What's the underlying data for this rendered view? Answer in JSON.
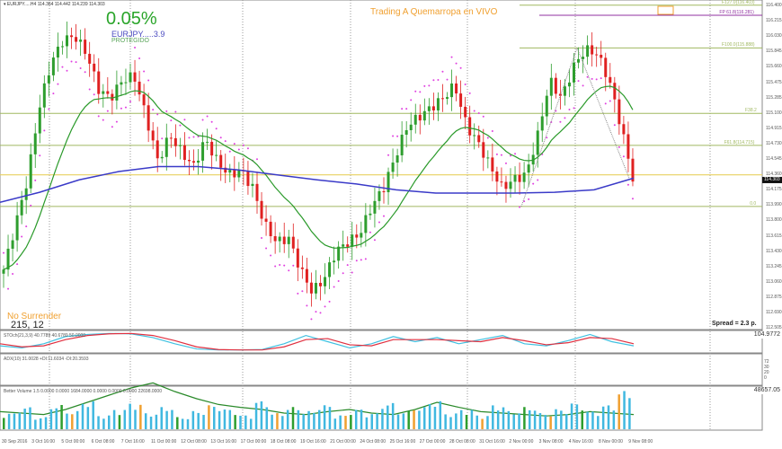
{
  "header": {
    "symbol_line": "▾ EURJPY.....H4  114.364 114.442 114.239 114.303"
  },
  "overlay": {
    "percent": "0.05%",
    "symbol_value": "EURJPY.....3.9",
    "status": "PROTEGIDO",
    "title": "Trading A Quemarropa en VIVO",
    "slogan": "No Surrender",
    "counter": "215, 12",
    "spread": "Spread = 2.3 p."
  },
  "panes": {
    "stoch_label": "STOch(21,3,9) 40.7789 40.6789 50.0000",
    "adx_label": "ADX(10) 31.0028 +DI:11.6034 -DI:20.3593",
    "volume_label": "Better Volume 1.5 0.0000 0.0000 1684.0000 0.0000 0.0000 0.0000 22698.0000",
    "volume_max": "48657.05",
    "stoch_max": "104.9772",
    "adx_levels": [
      "72",
      "30",
      "20",
      "0"
    ]
  },
  "colors": {
    "bull": "#2e9e2e",
    "bear": "#e02020",
    "ma_fast": "#2a9a2a",
    "ma_slow": "#3a3ac8",
    "psar": "#e040e0",
    "fib": "#a0b860",
    "pivot": "#9030a0",
    "current": "#e8d060",
    "stoch_main": "#40c0e0",
    "stoch_signal": "#e03040",
    "adx": "#2a8a2a",
    "volume": "#40b8e0"
  },
  "chart_data": {
    "type": "candlestick",
    "timeframe": "H4",
    "ylim": [
      112.505,
      116.46
    ],
    "y_ticks": [
      "116.400",
      "116.215",
      "116.030",
      "115.845",
      "115.660",
      "115.475",
      "115.285",
      "115.100",
      "114.915",
      "114.730",
      "114.545",
      "114.360",
      "114.175",
      "113.990",
      "113.800",
      "113.615",
      "113.430",
      "113.245",
      "113.060",
      "112.875",
      "112.690",
      "112.505"
    ],
    "current_price": "114.303",
    "x_ticks": [
      "30 Sep 2016",
      "3 Oct 16:00",
      "5 Oct 00:00",
      "6 Oct 08:00",
      "7 Oct 16:00",
      "11 Oct 00:00",
      "12 Oct 08:00",
      "13 Oct 16:00",
      "17 Oct 00:00",
      "18 Oct 08:00",
      "19 Oct 16:00",
      "21 Oct 00:00",
      "24 Oct 08:00",
      "25 Oct 16:00",
      "27 Oct 00:00",
      "28 Oct 08:00",
      "31 Oct 16:00",
      "2 Nov 00:00",
      "3 Nov 08:00",
      "4 Nov 16:00",
      "8 Nov 00:00",
      "9 Nov 08:00"
    ],
    "close_path": [
      113.22,
      113.76,
      114.3,
      115.17,
      115.71,
      115.98,
      116.03,
      115.82,
      115.39,
      115.28,
      115.5,
      115.55,
      115.06,
      114.52,
      114.84,
      114.63,
      114.46,
      114.79,
      114.52,
      114.36,
      114.41,
      114.2,
      113.76,
      113.55,
      113.6,
      113.22,
      112.95,
      113.11,
      113.44,
      113.55,
      113.65,
      113.98,
      114.2,
      114.58,
      114.95,
      115.06,
      115.17,
      115.28,
      115.44,
      114.95,
      114.74,
      114.46,
      114.2,
      114.31,
      114.36,
      114.84,
      115.5,
      115.28,
      115.66,
      115.87,
      115.82,
      115.5,
      114.95,
      114.32
    ],
    "ma_slow_path": [
      114.03,
      114.15,
      114.3,
      114.4,
      114.46,
      114.46,
      114.42,
      114.36,
      114.3,
      114.25,
      114.18,
      114.14,
      114.14,
      114.14,
      114.15,
      114.18,
      114.32
    ],
    "fib_levels": [
      {
        "label": "F127.0(116.403)",
        "price": 116.403
      },
      {
        "label": "FP 61.8(116.281)",
        "price": 116.281
      },
      {
        "label": "F100.0(115.888)",
        "price": 115.888
      },
      {
        "label": "F38.2",
        "price": 115.1
      },
      {
        "label": "F61.8(114.715)",
        "price": 114.715
      },
      {
        "label": "0.0",
        "price": 113.98
      }
    ],
    "stoch_main": [
      30,
      20,
      40,
      75,
      85,
      90,
      88,
      70,
      40,
      15,
      10,
      10,
      12,
      40,
      80,
      50,
      20,
      40,
      75,
      50,
      70,
      40,
      60,
      80,
      40,
      30,
      55,
      85,
      50,
      30
    ],
    "stoch_signal": [
      40,
      25,
      30,
      60,
      80,
      88,
      90,
      80,
      55,
      25,
      12,
      10,
      10,
      25,
      60,
      65,
      35,
      30,
      60,
      60,
      60,
      55,
      50,
      70,
      55,
      35,
      45,
      70,
      65,
      40
    ],
    "adx": [
      22,
      20,
      18,
      25,
      35,
      45,
      55,
      62,
      50,
      40,
      32,
      28,
      25,
      20,
      18,
      22,
      25,
      20,
      18,
      25,
      35,
      28,
      22,
      20,
      18,
      16,
      18,
      22,
      20,
      18
    ],
    "volume": [
      40,
      55,
      30,
      60,
      45,
      70,
      35,
      50,
      65,
      40,
      55,
      30,
      45,
      60,
      50,
      35,
      70,
      40,
      55,
      45,
      60,
      35,
      50,
      40,
      65,
      45,
      55,
      70,
      40,
      50,
      35,
      60,
      45,
      55,
      40,
      50,
      65,
      45,
      60,
      95
    ]
  }
}
